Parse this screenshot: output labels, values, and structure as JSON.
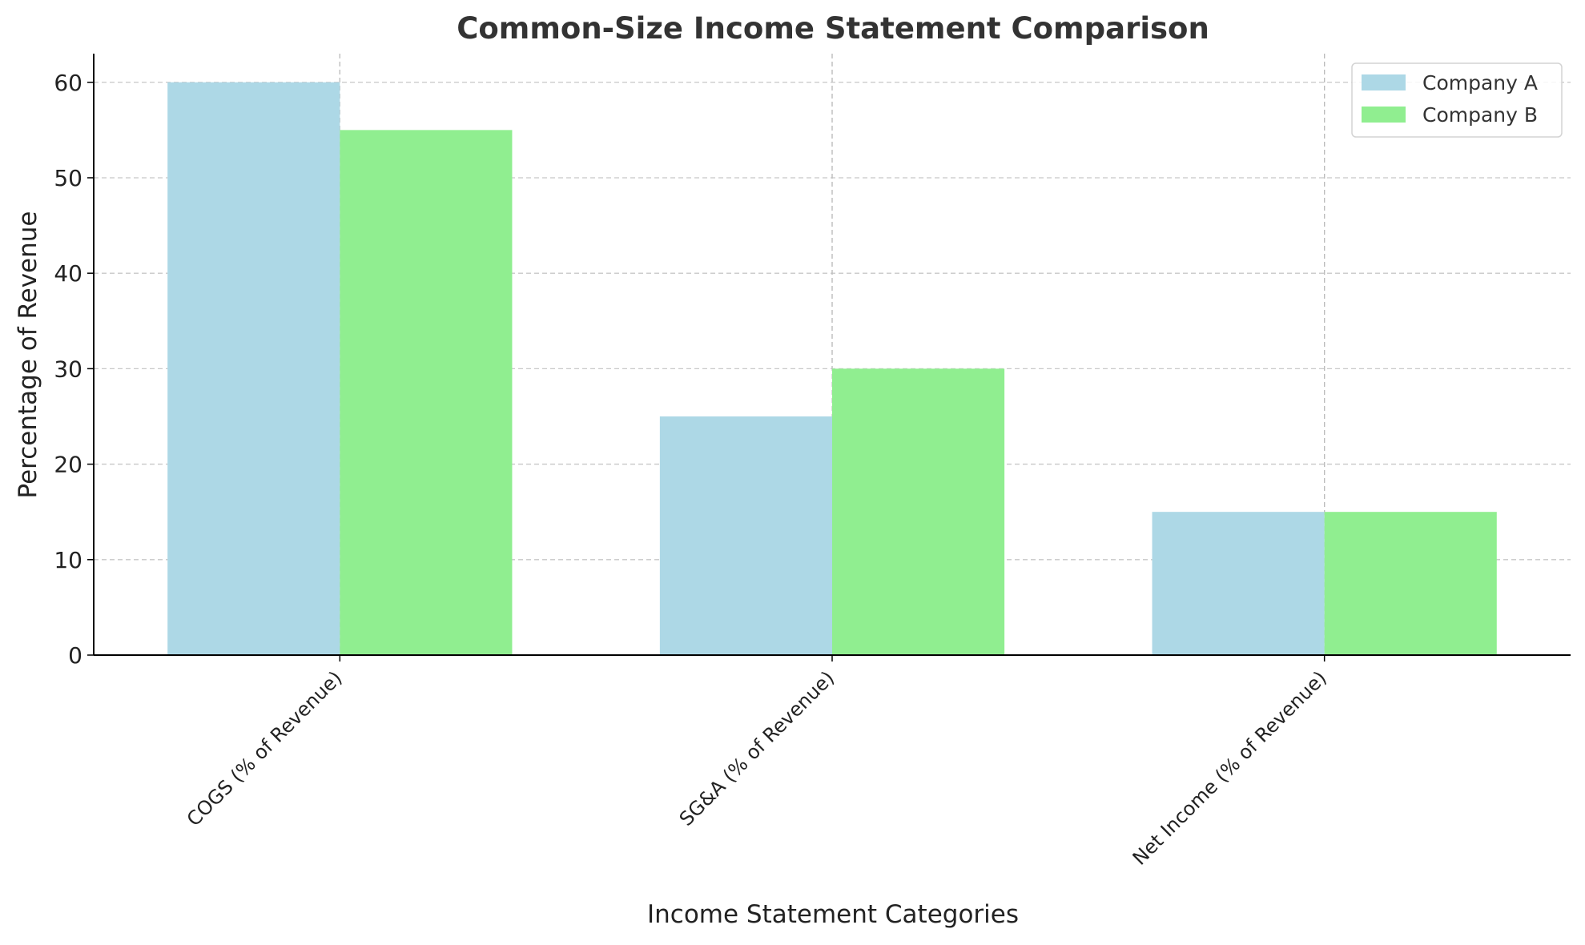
{
  "chart_data": {
    "type": "bar",
    "title": "Common-Size Income Statement Comparison",
    "xlabel": "Income Statement Categories",
    "ylabel": "Percentage of Revenue",
    "categories": [
      "COGS (% of Revenue)",
      "SG&A (% of Revenue)",
      "Net Income (% of Revenue)"
    ],
    "series": [
      {
        "name": "Company A",
        "color": "#add8e6",
        "values": [
          60,
          25,
          15
        ]
      },
      {
        "name": "Company B",
        "color": "#90ee90",
        "values": [
          55,
          30,
          15
        ]
      }
    ],
    "ylim": [
      0,
      63
    ],
    "yticks": [
      0,
      10,
      20,
      30,
      40,
      50,
      60
    ],
    "grid": true,
    "legend_position": "top-right"
  }
}
